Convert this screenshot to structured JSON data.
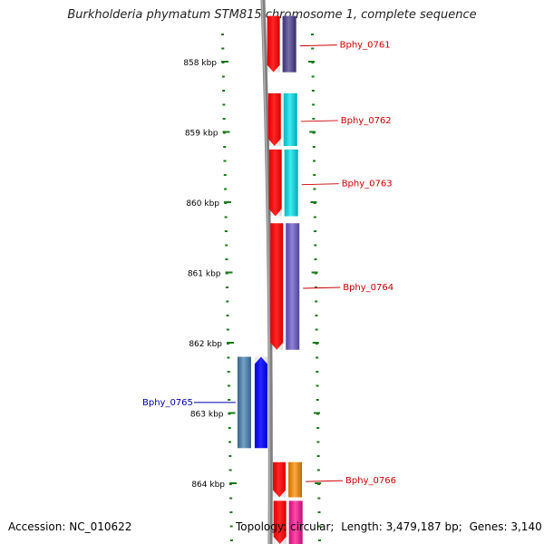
{
  "title": "Burkholderia phymatum STM815 chromosome 1, complete sequence",
  "footer": {
    "accession_label": "Accession:",
    "accession": "NC_010622",
    "topology_label": "Topology:",
    "topology": "circular",
    "length_label": "Length:",
    "length": "3,479,187 bp",
    "genes_label": "Genes:",
    "genes": "3,140"
  },
  "ruler": {
    "unit": "kbp",
    "ticks": [
      858,
      859,
      860,
      861,
      862,
      863,
      864
    ]
  },
  "colors": {
    "backbone": "#808080",
    "tick": "#1a7a1a",
    "label_forward": "#cc0000",
    "label_reverse": "#0000aa",
    "strand_forward": "#ff0000",
    "strand_reverse": "#0000ff"
  },
  "genes": [
    {
      "name": "Bphy_0761",
      "strand": "+",
      "start_kbp": 857.35,
      "end_kbp": 858.15,
      "cog_color": "#4b3d8f"
    },
    {
      "name": "Bphy_0762",
      "strand": "+",
      "start_kbp": 858.45,
      "end_kbp": 859.2,
      "cog_color": "#00e5ee"
    },
    {
      "name": "Bphy_0763",
      "strand": "+",
      "start_kbp": 859.25,
      "end_kbp": 860.2,
      "cog_color": "#00e5ee"
    },
    {
      "name": "Bphy_0764",
      "strand": "+",
      "start_kbp": 860.3,
      "end_kbp": 862.1,
      "cog_color": "#6a5acd"
    },
    {
      "name": "Bphy_0765",
      "strand": "-",
      "start_kbp": 862.2,
      "end_kbp": 863.5,
      "cog_color": "#4682b4"
    },
    {
      "name": "Bphy_0766",
      "strand": "+",
      "start_kbp": 863.7,
      "end_kbp": 864.2,
      "cog_color": "#ff8c00"
    },
    {
      "name": "",
      "strand": "+",
      "start_kbp": 864.25,
      "end_kbp": 864.9,
      "cog_color": "#ff1493"
    }
  ]
}
